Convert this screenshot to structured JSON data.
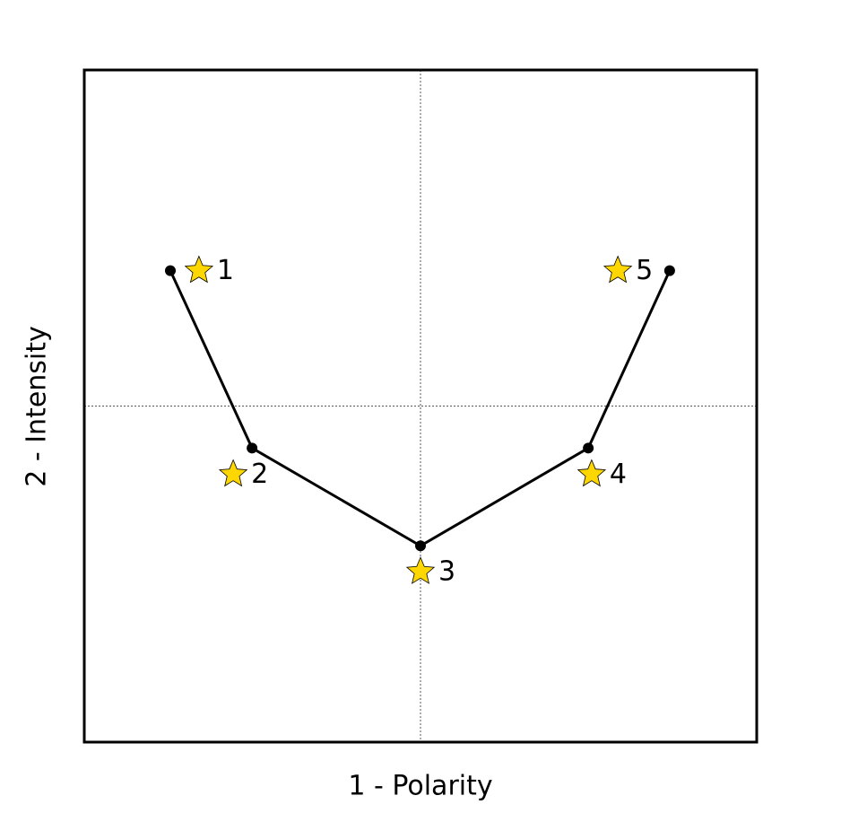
{
  "chart_data": {
    "type": "line",
    "xlabel": "1 - Polarity",
    "ylabel": "2 - Intensity",
    "xlim": [
      -1,
      1
    ],
    "ylim": [
      -1,
      1
    ],
    "series": [
      {
        "color": "#000000",
        "marker": "circle",
        "x": [
          -0.744,
          -0.501,
          0,
          0.499,
          0.741
        ],
        "values": [
          0.403,
          -0.125,
          -0.416,
          -0.125,
          0.403
        ]
      },
      {
        "color": "#ffd700",
        "marker": "star",
        "x": [
          -0.659,
          -0.557,
          0,
          0.509,
          0.587
        ],
        "values": [
          0.403,
          -0.203,
          -0.493,
          -0.203,
          0.403
        ],
        "labels": [
          "1",
          "2",
          "3",
          "4",
          "5"
        ]
      }
    ]
  }
}
